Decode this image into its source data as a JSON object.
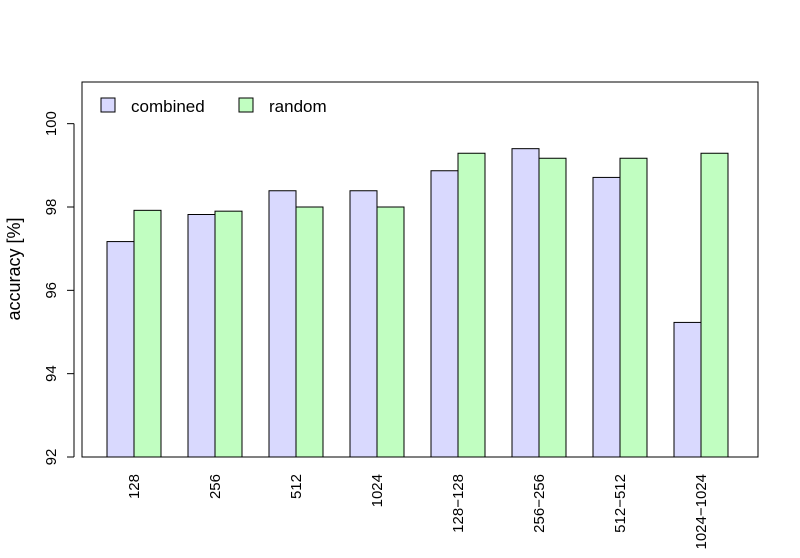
{
  "chart_data": {
    "type": "bar",
    "title": "",
    "xlabel": "",
    "ylabel": "accuracy [%]",
    "ylim": [
      92,
      101
    ],
    "yticks": [
      92,
      94,
      96,
      98,
      100
    ],
    "categories": [
      "128",
      "256",
      "512",
      "1024",
      "128−128",
      "256−256",
      "512−512",
      "1024−1024"
    ],
    "series": [
      {
        "name": "combined",
        "color": "#d9d9fe",
        "values": [
          97.17,
          97.82,
          98.39,
          98.39,
          98.87,
          99.4,
          98.71,
          95.23
        ]
      },
      {
        "name": "random",
        "color": "#c1fec1",
        "values": [
          97.92,
          97.9,
          98.0,
          98.0,
          99.29,
          99.17,
          99.17,
          99.29
        ]
      }
    ],
    "legend": "top-left",
    "grid": false
  }
}
